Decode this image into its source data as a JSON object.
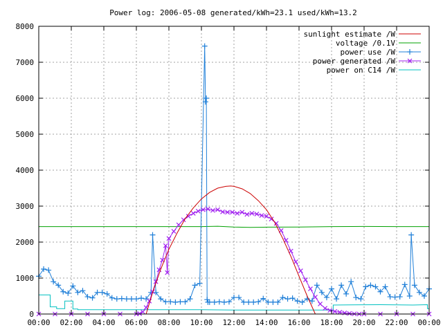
{
  "chart_data": {
    "type": "line",
    "title": "Power log: 2006-05-08 generated/kWh=23.1 used/kWh=13.2",
    "xlabel": "",
    "ylabel": "",
    "x_range_hours": [
      0,
      24
    ],
    "ylim": [
      0,
      8000
    ],
    "x_ticks": [
      "00:00",
      "02:00",
      "04:00",
      "06:00",
      "08:00",
      "10:00",
      "12:00",
      "14:00",
      "16:00",
      "18:00",
      "20:00",
      "22:00",
      "00:00"
    ],
    "y_ticks": [
      "0",
      "1000",
      "2000",
      "3000",
      "4000",
      "5000",
      "6000",
      "7000",
      "8000"
    ],
    "grid": true,
    "legend_position": "top-right",
    "series": [
      {
        "name": "sunlight estimate /W",
        "color": "#cc0000",
        "marker": "none",
        "x": [
          6.6,
          7.0,
          7.5,
          8.0,
          8.5,
          9.0,
          9.5,
          10.0,
          10.5,
          11.0,
          11.5,
          11.8,
          12.0,
          12.5,
          13.0,
          13.5,
          14.0,
          14.5,
          15.0,
          15.5,
          16.0,
          16.5,
          17.0
        ],
        "y": [
          0,
          600,
          1250,
          1800,
          2250,
          2650,
          2950,
          3200,
          3380,
          3500,
          3550,
          3560,
          3550,
          3480,
          3350,
          3150,
          2900,
          2550,
          2100,
          1600,
          1050,
          500,
          0
        ]
      },
      {
        "name": "voltage /0.1V",
        "color": "#00a000",
        "marker": "none",
        "x": [
          0,
          2,
          4,
          6,
          8,
          10,
          11,
          12,
          13,
          14,
          16,
          18,
          20,
          22,
          24
        ],
        "y": [
          2430,
          2430,
          2430,
          2430,
          2430,
          2430,
          2440,
          2420,
          2410,
          2415,
          2420,
          2430,
          2435,
          2430,
          2430
        ]
      },
      {
        "name": "power use /W",
        "color": "#1f7fd8",
        "marker": "plus",
        "x": [
          0.0,
          0.3,
          0.6,
          0.9,
          1.2,
          1.5,
          1.8,
          2.1,
          2.4,
          2.7,
          3.0,
          3.3,
          3.6,
          3.9,
          4.2,
          4.5,
          4.8,
          5.1,
          5.4,
          5.7,
          6.0,
          6.3,
          6.6,
          6.9,
          7.0,
          7.2,
          7.5,
          7.8,
          8.1,
          8.4,
          8.7,
          9.0,
          9.3,
          9.6,
          9.9,
          10.2,
          10.25,
          10.3,
          10.35,
          10.4,
          10.5,
          10.8,
          11.1,
          11.4,
          11.7,
          12.0,
          12.3,
          12.6,
          12.9,
          13.2,
          13.5,
          13.8,
          14.1,
          14.4,
          14.7,
          15.0,
          15.3,
          15.6,
          15.9,
          16.2,
          16.5,
          16.8,
          17.1,
          17.4,
          17.7,
          18.0,
          18.3,
          18.6,
          18.9,
          19.2,
          19.5,
          19.8,
          20.1,
          20.4,
          20.7,
          21.0,
          21.3,
          21.6,
          21.9,
          22.2,
          22.5,
          22.8,
          22.9,
          23.1,
          23.4,
          23.7,
          24.0
        ],
        "y": [
          1050,
          1250,
          1220,
          900,
          800,
          620,
          580,
          780,
          600,
          650,
          480,
          450,
          600,
          600,
          560,
          450,
          420,
          430,
          420,
          420,
          420,
          440,
          420,
          600,
          2200,
          600,
          420,
          340,
          340,
          330,
          340,
          340,
          420,
          800,
          850,
          7450,
          5900,
          6000,
          400,
          330,
          330,
          330,
          340,
          330,
          340,
          460,
          460,
          330,
          330,
          330,
          340,
          430,
          330,
          330,
          330,
          460,
          420,
          440,
          360,
          330,
          420,
          360,
          800,
          600,
          460,
          700,
          420,
          800,
          560,
          900,
          460,
          420,
          760,
          800,
          760,
          620,
          760,
          480,
          470,
          480,
          820,
          500,
          2200,
          800,
          600,
          500,
          700
        ]
      },
      {
        "name": "power generated /W",
        "color": "#a020f0",
        "marker": "cross",
        "x": [
          0,
          1,
          2,
          3,
          4,
          5,
          6,
          6.2,
          6.4,
          6.6,
          6.8,
          7.0,
          7.2,
          7.4,
          7.6,
          7.8,
          7.9,
          8.0,
          8.3,
          8.6,
          8.9,
          9.2,
          9.5,
          9.8,
          10.1,
          10.4,
          10.7,
          11.0,
          11.3,
          11.6,
          11.9,
          12.2,
          12.5,
          12.8,
          13.1,
          13.4,
          13.7,
          14.0,
          14.3,
          14.6,
          14.9,
          15.2,
          15.5,
          15.8,
          16.1,
          16.4,
          16.7,
          17.0,
          17.3,
          17.6,
          17.9,
          18.2,
          18.5,
          18.8,
          19.1,
          19.4,
          19.7,
          20.0,
          21,
          22,
          23,
          24
        ],
        "y": [
          0,
          0,
          0,
          0,
          0,
          0,
          0,
          10,
          60,
          180,
          360,
          620,
          900,
          1230,
          1500,
          1900,
          1150,
          2100,
          2300,
          2480,
          2620,
          2720,
          2800,
          2860,
          2900,
          2920,
          2880,
          2900,
          2840,
          2830,
          2830,
          2800,
          2830,
          2770,
          2800,
          2780,
          2740,
          2720,
          2640,
          2520,
          2320,
          2050,
          1750,
          1450,
          1200,
          950,
          700,
          470,
          280,
          160,
          100,
          70,
          50,
          30,
          15,
          5,
          0,
          0,
          0,
          0,
          0,
          0
        ]
      },
      {
        "name": "power on C14 /W",
        "color": "#00c0c0",
        "marker": "none",
        "x": [
          0,
          0.7,
          0.7,
          1.1,
          1.1,
          1.6,
          1.6,
          2.1,
          2.1,
          2.4,
          2.4,
          4,
          6,
          8,
          10,
          12,
          14,
          16,
          18,
          18.1,
          18.1,
          21,
          23,
          23.9,
          23.9,
          24
        ],
        "y": [
          530,
          530,
          200,
          200,
          150,
          150,
          360,
          360,
          140,
          140,
          120,
          120,
          120,
          120,
          120,
          110,
          110,
          110,
          110,
          110,
          250,
          260,
          250,
          260,
          150,
          150
        ]
      }
    ]
  }
}
